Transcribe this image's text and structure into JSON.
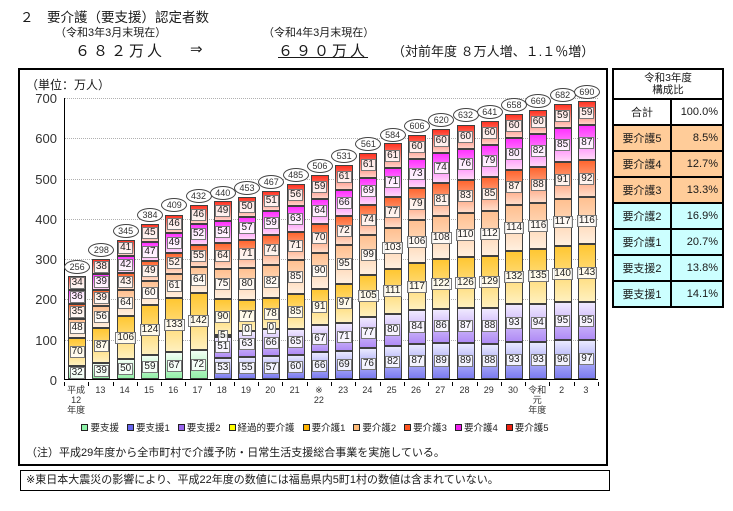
{
  "header": {
    "title": "２　要介護（要支援）認定者数",
    "left_date": "（令和3年3月末現在）",
    "right_date": "（令和4年3月末現在）",
    "left_value": "６８２万人",
    "arrow": "⇒",
    "right_value": "６９０万人",
    "change_note": "（対前年度 ８万人増、１.１％増）"
  },
  "chart_data": {
    "type": "bar",
    "stacked": true,
    "unit_label": "（単位：万人）",
    "ylim": [
      0,
      700
    ],
    "ytick_interval": 100,
    "grid": true,
    "legend_position": "bottom",
    "legend_order": [
      "yoshien",
      "yoshien1",
      "yoshien2",
      "keikateki",
      "yokaigo1",
      "yokaigo2",
      "yokaigo3",
      "yokaigo4",
      "yokaigo5"
    ],
    "series_labels": {
      "yoshien": "要支援",
      "yoshien1": "要支援1",
      "yoshien2": "要支援2",
      "keikateki": "経過的要介護",
      "yokaigo1": "要介護1",
      "yokaigo2": "要介護2",
      "yokaigo3": "要介護3",
      "yokaigo4": "要介護4",
      "yokaigo5": "要介護5"
    },
    "colors": {
      "yoshien": {
        "strong": "#94f0a8",
        "light": "#f2fff4",
        "legend": "#8df2a8",
        "dir": "up"
      },
      "yoshien1": {
        "strong": "#7b7bf0",
        "light": "#e9e9ff",
        "legend": "#6666ee",
        "dir": "up"
      },
      "yoshien2": {
        "strong": "#b08cf5",
        "light": "#f0e9ff",
        "legend": "#9966ee",
        "dir": "up"
      },
      "keikateki": {
        "strong": "#ffff70",
        "light": "#ffffd2",
        "legend": "#ffff00",
        "dir": "up"
      },
      "yokaigo1": {
        "strong": "#ffc733",
        "light": "#fff0be",
        "legend": "#ffb400",
        "dir": "down"
      },
      "yokaigo2": {
        "strong": "#ffc091",
        "light": "#ffefde",
        "legend": "#ffbb77",
        "dir": "down"
      },
      "yokaigo3": {
        "strong": "#ff6630",
        "light": "#ffdcc8",
        "legend": "#ff5522",
        "dir": "down"
      },
      "yokaigo4": {
        "strong": "#ff33ff",
        "light": "#ffd6f8",
        "legend": "#ee22ee",
        "dir": "down"
      },
      "yokaigo5": {
        "strong": "#ff3322",
        "light": "#ffd2c8",
        "legend": "#ee2211",
        "dir": "down"
      }
    },
    "bars": [
      {
        "tick": "平成\n12\n年度",
        "total": 256,
        "segments": [
          [
            "yoshien",
            32
          ],
          [
            "yokaigo1",
            70
          ],
          [
            "yokaigo2",
            48
          ],
          [
            "yokaigo3",
            35
          ],
          [
            "yokaigo4",
            36
          ],
          [
            "yokaigo5",
            34
          ]
        ]
      },
      {
        "tick": "13",
        "total": 298,
        "segments": [
          [
            "yoshien",
            39
          ],
          [
            "yokaigo1",
            87
          ],
          [
            "yokaigo2",
            56
          ],
          [
            "yokaigo3",
            39
          ],
          [
            "yokaigo4",
            39
          ],
          [
            "yokaigo5",
            38
          ]
        ]
      },
      {
        "tick": "14",
        "total": 345,
        "segments": [
          [
            "yoshien",
            50
          ],
          [
            "yokaigo1",
            106
          ],
          [
            "yokaigo2",
            64
          ],
          [
            "yokaigo3",
            43
          ],
          [
            "yokaigo4",
            42
          ],
          [
            "yokaigo5",
            41
          ]
        ]
      },
      {
        "tick": "15",
        "total": 384,
        "segments": [
          [
            "yoshien",
            59
          ],
          [
            "yokaigo1",
            124
          ],
          [
            "yokaigo2",
            60
          ],
          [
            "yokaigo3",
            49
          ],
          [
            "yokaigo4",
            47
          ],
          [
            "yokaigo5",
            45
          ]
        ]
      },
      {
        "tick": "16",
        "total": 409,
        "segments": [
          [
            "yoshien",
            67
          ],
          [
            "yokaigo1",
            133
          ],
          [
            "yokaigo2",
            61
          ],
          [
            "yokaigo3",
            52
          ],
          [
            "yokaigo4",
            49
          ],
          [
            "yokaigo5",
            46
          ]
        ]
      },
      {
        "tick": "17",
        "total": 432,
        "segments": [
          [
            "yoshien",
            72
          ],
          [
            "yokaigo1",
            142
          ],
          [
            "yokaigo2",
            64
          ],
          [
            "yokaigo3",
            55
          ],
          [
            "yokaigo4",
            52
          ],
          [
            "yokaigo5",
            46
          ]
        ]
      },
      {
        "tick": "18",
        "total": 440,
        "segments": [
          [
            "yoshien1",
            53
          ],
          [
            "yoshien2",
            51
          ],
          [
            "keikateki",
            5
          ],
          [
            "yokaigo1",
            90
          ],
          [
            "yokaigo2",
            75
          ],
          [
            "yokaigo3",
            64
          ],
          [
            "yokaigo4",
            54
          ],
          [
            "yokaigo5",
            49
          ]
        ]
      },
      {
        "tick": "19",
        "total": 453,
        "segments": [
          [
            "yoshien1",
            55
          ],
          [
            "yoshien2",
            63
          ],
          [
            "keikateki",
            0
          ],
          [
            "yokaigo1",
            77
          ],
          [
            "yokaigo2",
            80
          ],
          [
            "yokaigo3",
            71
          ],
          [
            "yokaigo4",
            57
          ],
          [
            "yokaigo5",
            50
          ]
        ]
      },
      {
        "tick": "20",
        "total": 467,
        "segments": [
          [
            "yoshien1",
            57
          ],
          [
            "yoshien2",
            66
          ],
          [
            "keikateki",
            0
          ],
          [
            "yokaigo1",
            78
          ],
          [
            "yokaigo2",
            82
          ],
          [
            "yokaigo3",
            74
          ],
          [
            "yokaigo4",
            59
          ],
          [
            "yokaigo5",
            51
          ]
        ]
      },
      {
        "tick": "21",
        "total": 485,
        "segments": [
          [
            "yoshien1",
            60
          ],
          [
            "yoshien2",
            65
          ],
          [
            "yokaigo1",
            85
          ],
          [
            "yokaigo2",
            85
          ],
          [
            "yokaigo3",
            71
          ],
          [
            "yokaigo4",
            63
          ],
          [
            "yokaigo5",
            56
          ]
        ]
      },
      {
        "tick": "※\n22",
        "total": 506,
        "segments": [
          [
            "yoshien1",
            66
          ],
          [
            "yoshien2",
            67
          ],
          [
            "yokaigo1",
            91
          ],
          [
            "yokaigo2",
            90
          ],
          [
            "yokaigo3",
            70
          ],
          [
            "yokaigo4",
            64
          ],
          [
            "yokaigo5",
            59
          ]
        ]
      },
      {
        "tick": "23",
        "total": 531,
        "segments": [
          [
            "yoshien1",
            69
          ],
          [
            "yoshien2",
            71
          ],
          [
            "yokaigo1",
            97
          ],
          [
            "yokaigo2",
            95
          ],
          [
            "yokaigo3",
            72
          ],
          [
            "yokaigo4",
            66
          ],
          [
            "yokaigo5",
            61
          ]
        ]
      },
      {
        "tick": "24",
        "total": 561,
        "segments": [
          [
            "yoshien1",
            76
          ],
          [
            "yoshien2",
            77
          ],
          [
            "yokaigo1",
            105
          ],
          [
            "yokaigo2",
            99
          ],
          [
            "yokaigo3",
            74
          ],
          [
            "yokaigo4",
            69
          ],
          [
            "yokaigo5",
            61
          ]
        ]
      },
      {
        "tick": "25",
        "total": 584,
        "segments": [
          [
            "yoshien1",
            82
          ],
          [
            "yoshien2",
            80
          ],
          [
            "yokaigo1",
            111
          ],
          [
            "yokaigo2",
            103
          ],
          [
            "yokaigo3",
            77
          ],
          [
            "yokaigo4",
            71
          ],
          [
            "yokaigo5",
            61
          ]
        ]
      },
      {
        "tick": "26",
        "total": 606,
        "segments": [
          [
            "yoshien1",
            87
          ],
          [
            "yoshien2",
            84
          ],
          [
            "yokaigo1",
            117
          ],
          [
            "yokaigo2",
            106
          ],
          [
            "yokaigo3",
            79
          ],
          [
            "yokaigo4",
            73
          ],
          [
            "yokaigo5",
            60
          ]
        ]
      },
      {
        "tick": "27",
        "total": 620,
        "segments": [
          [
            "yoshien1",
            89
          ],
          [
            "yoshien2",
            86
          ],
          [
            "yokaigo1",
            122
          ],
          [
            "yokaigo2",
            108
          ],
          [
            "yokaigo3",
            81
          ],
          [
            "yokaigo4",
            74
          ],
          [
            "yokaigo5",
            60
          ]
        ]
      },
      {
        "tick": "28",
        "total": 632,
        "segments": [
          [
            "yoshien1",
            89
          ],
          [
            "yoshien2",
            87
          ],
          [
            "yokaigo1",
            126
          ],
          [
            "yokaigo2",
            110
          ],
          [
            "yokaigo3",
            83
          ],
          [
            "yokaigo4",
            76
          ],
          [
            "yokaigo5",
            60
          ]
        ]
      },
      {
        "tick": "29",
        "total": 641,
        "segments": [
          [
            "yoshien1",
            88
          ],
          [
            "yoshien2",
            88
          ],
          [
            "yokaigo1",
            129
          ],
          [
            "yokaigo2",
            112
          ],
          [
            "yokaigo3",
            85
          ],
          [
            "yokaigo4",
            79
          ],
          [
            "yokaigo5",
            60
          ]
        ]
      },
      {
        "tick": "30",
        "total": 658,
        "segments": [
          [
            "yoshien1",
            93
          ],
          [
            "yoshien2",
            93
          ],
          [
            "yokaigo1",
            132
          ],
          [
            "yokaigo2",
            114
          ],
          [
            "yokaigo3",
            87
          ],
          [
            "yokaigo4",
            80
          ],
          [
            "yokaigo5",
            60
          ]
        ]
      },
      {
        "tick": "令和\n元\n年度",
        "total": 669,
        "segments": [
          [
            "yoshien1",
            93
          ],
          [
            "yoshien2",
            94
          ],
          [
            "yokaigo1",
            135
          ],
          [
            "yokaigo2",
            116
          ],
          [
            "yokaigo3",
            88
          ],
          [
            "yokaigo4",
            82
          ],
          [
            "yokaigo5",
            60
          ]
        ]
      },
      {
        "tick": "2",
        "total": 682,
        "segments": [
          [
            "yoshien1",
            96
          ],
          [
            "yoshien2",
            95
          ],
          [
            "yokaigo1",
            140
          ],
          [
            "yokaigo2",
            117
          ],
          [
            "yokaigo3",
            91
          ],
          [
            "yokaigo4",
            85
          ],
          [
            "yokaigo5",
            59
          ]
        ]
      },
      {
        "tick": "3",
        "total": 690,
        "segments": [
          [
            "yoshien1",
            97
          ],
          [
            "yoshien2",
            95
          ],
          [
            "yokaigo1",
            143
          ],
          [
            "yokaigo2",
            116
          ],
          [
            "yokaigo3",
            92
          ],
          [
            "yokaigo4",
            87
          ],
          [
            "yokaigo5",
            59
          ]
        ]
      }
    ]
  },
  "composition_table": {
    "header": "令和3年度\n構成比",
    "rows": [
      {
        "label": "合計",
        "value": "100.0%",
        "bg": "#ffffff"
      },
      {
        "label": "要介護5",
        "value": "8.5%",
        "bg": "#ffcc99"
      },
      {
        "label": "要介護4",
        "value": "12.7%",
        "bg": "#ffcc99"
      },
      {
        "label": "要介護3",
        "value": "13.3%",
        "bg": "#ffcc99"
      },
      {
        "label": "要介護2",
        "value": "16.9%",
        "bg": "#ccffff"
      },
      {
        "label": "要介護1",
        "value": "20.7%",
        "bg": "#ccffff"
      },
      {
        "label": "要支援2",
        "value": "13.8%",
        "bg": "#ccffff"
      },
      {
        "label": "要支援1",
        "value": "14.1%",
        "bg": "#ccffff"
      }
    ]
  },
  "notes": {
    "note1": "（注）平成29年度から全市町村で介護予防・日常生活支援総合事業を実施している。",
    "note2": "※東日本大震災の影響により、平成22年度の数値には福島県内5町1村の数値は含まれていない。"
  }
}
